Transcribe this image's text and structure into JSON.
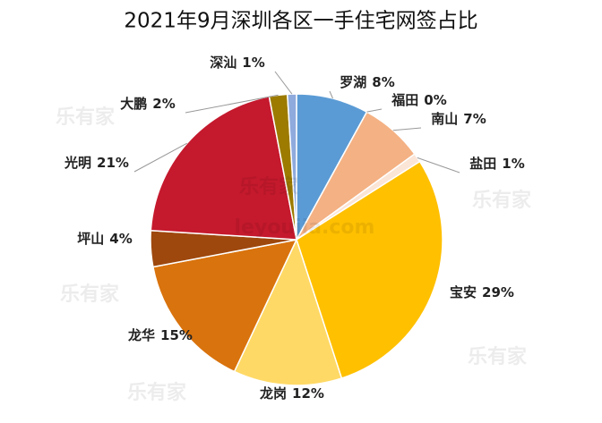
{
  "chart_data": {
    "type": "pie",
    "title": "2021年9月深圳各区一手住宅网签占比",
    "categories": [
      "罗湖",
      "福田",
      "南山",
      "盐田",
      "宝安",
      "龙岗",
      "龙华",
      "坪山",
      "光明",
      "大鹏",
      "深汕"
    ],
    "values": [
      8,
      0,
      7,
      1,
      29,
      12,
      15,
      4,
      21,
      2,
      1
    ],
    "value_labels": [
      "8%",
      "0%",
      "7%",
      "1%",
      "29%",
      "12%",
      "15%",
      "4%",
      "21%",
      "2%",
      "1%"
    ],
    "colors": [
      "#5b9bd5",
      "#2e75b6",
      "#f4b183",
      "#fbe5d6",
      "#ffc000",
      "#ffd966",
      "#d9730d",
      "#9e480e",
      "#c5192d",
      "#9c7b00",
      "#8faadc"
    ],
    "watermark": "乐有家",
    "watermark_url": "leyoujia.com"
  }
}
